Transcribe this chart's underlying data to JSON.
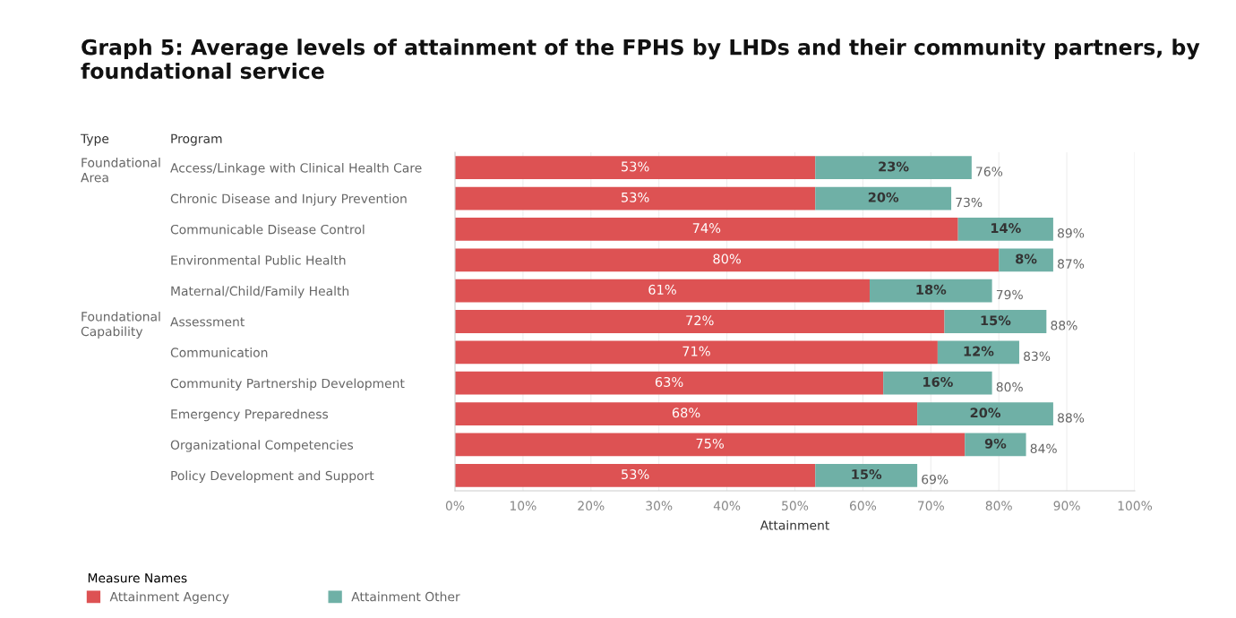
{
  "chart_data": {
    "type": "bar",
    "orientation": "horizontal",
    "stacked": true,
    "title": "Graph 5: Average levels of attainment of the FPHS by LHDs and their community partners, by foundational service",
    "xlabel": "Attainment",
    "categories": [
      "Access/Linkage with Clinical Health Care",
      "Chronic Disease and Injury Prevention",
      "Communicable Disease Control",
      "Environmental Public Health",
      "Maternal/Child/Family Health",
      "Assessment",
      "Communication",
      "Community Partnership Development",
      "Emergency Preparedness",
      "Organizational Competencies",
      "Policy Development and Support"
    ],
    "series": [
      {
        "name": "Attainment Agency",
        "color": "#dd5253",
        "values": [
          53,
          53,
          74,
          80,
          61,
          72,
          71,
          63,
          68,
          75,
          53
        ],
        "value_labels": [
          "53%",
          "53%",
          "74%",
          "80%",
          "61%",
          "72%",
          "71%",
          "63%",
          "68%",
          "75%",
          "53%"
        ]
      },
      {
        "name": "Attainment Other",
        "color": "#6fb0a6",
        "values": [
          23,
          20,
          14,
          8,
          18,
          15,
          12,
          16,
          20,
          9,
          15
        ],
        "value_labels": [
          "23%",
          "20%",
          "14%",
          "8%",
          "18%",
          "15%",
          "12%",
          "16%",
          "20%",
          "9%",
          "15%"
        ]
      }
    ],
    "totals": [
      "76%",
      "73%",
      "89%",
      "87%",
      "79%",
      "88%",
      "83%",
      "80%",
      "88%",
      "84%",
      "69%"
    ],
    "xlim": [
      0,
      100
    ],
    "xticks": [
      {
        "value": 0,
        "label": "0%"
      },
      {
        "value": 10,
        "label": "10%"
      },
      {
        "value": 20,
        "label": "20%"
      },
      {
        "value": 30,
        "label": "30%"
      },
      {
        "value": 40,
        "label": "40%"
      },
      {
        "value": 50,
        "label": "50%"
      },
      {
        "value": 60,
        "label": "60%"
      },
      {
        "value": 70,
        "label": "70%"
      },
      {
        "value": 80,
        "label": "80%"
      },
      {
        "value": 90,
        "label": "90%"
      },
      {
        "value": 100,
        "label": "100%"
      }
    ],
    "annotations": [
      "Type",
      "Program",
      "Foundational\nArea",
      "Foundational\nCapability"
    ],
    "legend": "bottom left",
    "legend_title": "Measure Names",
    "grid": "x"
  }
}
